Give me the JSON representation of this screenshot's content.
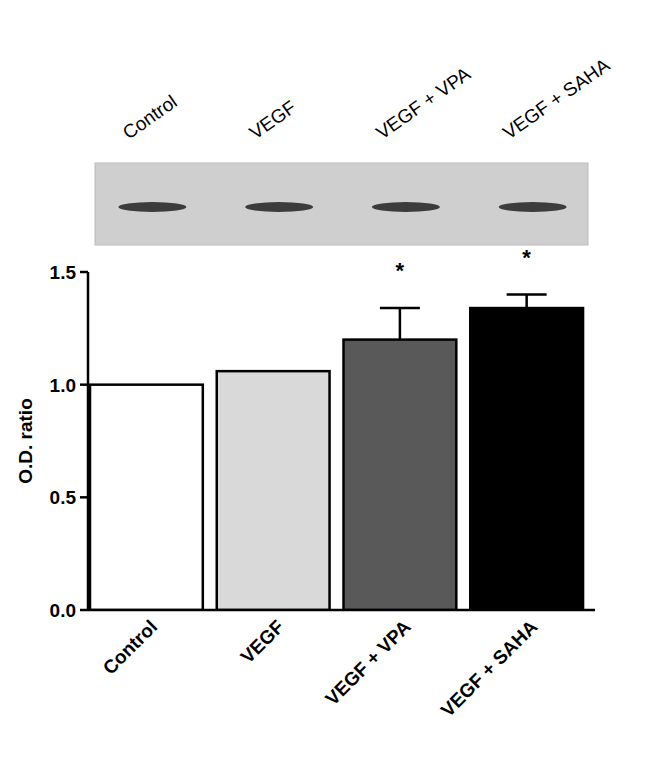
{
  "chart_data": {
    "type": "bar",
    "categories": [
      "Control",
      "VEGF",
      "VEGF + VPA",
      "VEGF + SAHA"
    ],
    "values": [
      1.0,
      1.06,
      1.2,
      1.34
    ],
    "errors": [
      null,
      null,
      0.14,
      0.06
    ],
    "colors": [
      "#ffffff",
      "#d9d9d9",
      "#595959",
      "#000000"
    ],
    "y_label": "O.D. ratio",
    "ylim": [
      0,
      1.5
    ],
    "yticks": [
      {
        "value": 0,
        "label": "0.0"
      },
      {
        "value": 0.5,
        "label": "0.5"
      },
      {
        "value": 1.0,
        "label": "1.0"
      },
      {
        "value": 1.5,
        "label": "1.5"
      }
    ],
    "annotations": [
      {
        "label": "*",
        "index": 2
      },
      {
        "label": "*",
        "index": 3
      }
    ],
    "grid": false
  }
}
